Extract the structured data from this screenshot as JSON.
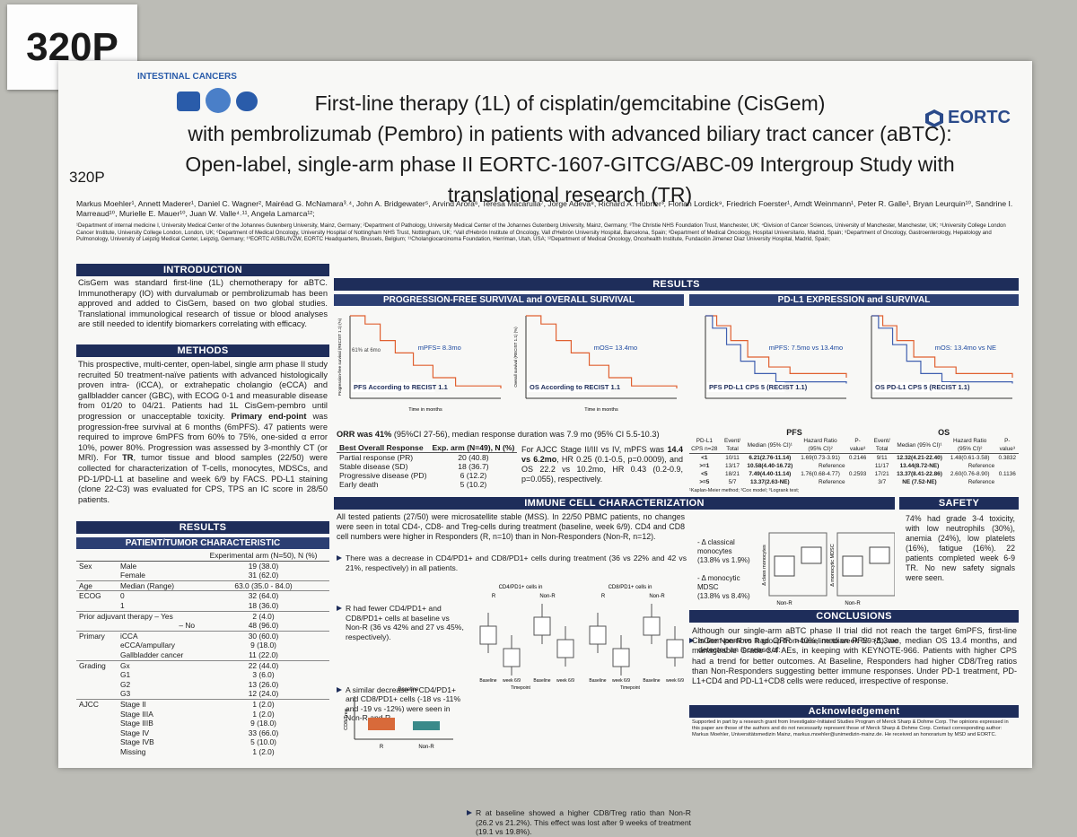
{
  "board_tag": "320P",
  "header": {
    "conference": "INTESTINAL CANCERS",
    "title_lines": [
      "First-line therapy (1L) of cisplatin/gemcitabine (CisGem)",
      "with pembrolizumab (Pembro) in patients with advanced biliary tract cancer (aBTC):",
      "Open-label, single-arm phase II EORTC-1607-GITCG/ABC-09 Intergroup Study with",
      "translational research (TR)"
    ],
    "poster_id": "320P",
    "logo": "EORTC",
    "authors": "Markus Moehler¹, Annett Maderer¹, Daniel C. Wagner², Mairéad G. McNamara³˒⁴, John A. Bridgewater⁵, Arvind Arora⁶, Teresa Macarulla⁷, Jorge Adeva⁸, Richard A. Hubner³, Florian Lordick⁹, Friedrich Foerster¹, Arndt Weinmann¹, Peter R. Galle¹, Bryan Leurquin¹⁰, Sandrine I. Marreaud¹⁰, Murielle E. Mauer¹⁰, Juan W. Valle⁴˒¹¹, Angela Lamarca¹²;",
    "affiliations": "¹Department of internal medicine I, University Medical Center of the Johannes Gutenberg University, Mainz, Germany; ²Department of Pathology, University Medical Center of the Johannes Gutenberg University, Mainz, Germany; ³The Christie NHS Foundation Trust, Manchester, UK; ⁴Division of Cancer Sciences, University of Manchester, Manchester, UK; ⁵University College London Cancer Institute, University College London, London, UK; ⁶Department of Medical Oncology, University Hospital of Nottingham NHS Trust, Nottingham, UK; ⁷Vall d'Hebrón Institute of Oncology, Vall d'Hebrón University Hospital, Barcelona, Spain; ⁸Department of Medical Oncology, Hospital Universitario, Madrid, Spain; ⁹Department of Oncology, Gastroenterology, Hepatology and Pulmonology, University of Leipzig Medical Center, Leipzig, Germany; ¹⁰EORTC AISBL/IVZW, EORTC Headquarters, Brussels, Belgium; ¹¹Cholangiocarcinoma Foundation, Herriman, Utah, USA; ¹²Department of Medical Oncology, Oncohealth Institute, Fundación Jimenez Diaz University Hospital, Madrid, Spain;"
  },
  "introduction": {
    "heading": "INTRODUCTION",
    "text": "CisGem was standard first-line (1L) chemotherapy for aBTC. Immunotherapy (IO) with durvalumab or pembrolizumab has been approved and added to CisGem, based on two global studies. Translational immunological research of tissue or blood analyses are still needed to identify biomarkers correlating with efficacy."
  },
  "methods": {
    "heading": "METHODS",
    "segments": [
      {
        "text": "This prospective, multi-center, open-label, single arm phase II study recruited 50 treatment-naïve patients with advanced histologically proven intra- (iCCA), or extrahepatic cholangio (eCCA) and gallbladder cancer (GBC), with ECOG 0-1 and measurable disease from 01/20 to 04/21. Patients had 1L CisGem-pembro until progression or unacceptable toxicity. "
      },
      {
        "text": "Primary end-point",
        "bold": true
      },
      {
        "text": " was progression-free survival at 6 months (6mPFS). 47 patients were required to improve 6mPFS from 60% to 75%, one-sided α error 10%, power 80%. Progression was assessed by 3-monthly CT (or MRI). For "
      },
      {
        "text": "TR",
        "bold": true
      },
      {
        "text": ", tumor tissue and blood samples (22/50) were collected for characterization of T-cells, monocytes, MDSCs, and PD-1/PD-L1 at baseline and week 6/9 by FACS. PD-L1 staining (clone 22-C3) was evaluated for CPS, TPS an IC score in 28/50 patients."
      }
    ]
  },
  "results_left": {
    "heading": "RESULTS",
    "subheading": "PATIENT/TUMOR CHARACTERISTIC",
    "column_header": "Experimental arm (N=50), N (%)",
    "rows": [
      {
        "group": "Sex",
        "item": "Male",
        "value": "19 (38.0)"
      },
      {
        "item": "Female",
        "value": "31 (62.0)"
      },
      {
        "group": "Age",
        "item": "Median (Range)",
        "value": "63.0 (35.0 - 84.0)"
      },
      {
        "group": "ECOG",
        "item": "0",
        "value": "32 (64.0)"
      },
      {
        "item": "1",
        "value": "18 (36.0)"
      },
      {
        "group": "Prior adjuvant therapy – Yes",
        "value": "2 (4.0)"
      },
      {
        "item": "– No",
        "value": "48 (96.0)"
      },
      {
        "group": "Primary",
        "item": "iCCA",
        "value": "30 (60.0)"
      },
      {
        "item": "eCCA/ampullary",
        "value": "9 (18.0)"
      },
      {
        "item": "Gallbladder cancer",
        "value": "11 (22.0)"
      },
      {
        "group": "Grading",
        "item": "Gx",
        "value": "22 (44.0)"
      },
      {
        "item": "G1",
        "value": "3 (6.0)"
      },
      {
        "item": "G2",
        "value": "13 (26.0)"
      },
      {
        "item": "G3",
        "value": "12 (24.0)"
      },
      {
        "group": "AJCC",
        "item": "Stage II",
        "value": "1 (2.0)"
      },
      {
        "item": "Stage IIIA",
        "value": "1 (2.0)"
      },
      {
        "item": "Stage IIIB",
        "value": "9 (18.0)"
      },
      {
        "item": "Stage IV",
        "value": "33 (66.0)"
      },
      {
        "item": "Stage IVB",
        "value": "5 (10.0)"
      },
      {
        "item": "Missing",
        "value": "1 (2.0)"
      }
    ]
  },
  "results": {
    "heading": "RESULTS",
    "survival": {
      "heading": "PROGRESSION-FREE SURVIVAL and OVERALL SURVIVAL",
      "pfs_plot": {
        "label": "PFS According to RECIST 1.1",
        "median": "mPFS= 8.3mo",
        "annotation": "61% at 6mo",
        "y_label": "Progression-free survival (RECIST 1.1) (%)",
        "x_label": "Time in months"
      },
      "os_plot": {
        "label": "OS According to RECIST 1.1",
        "median": "mOS= 13.4mo",
        "y_label": "Overall survival (RECIST 1.1) (%)",
        "x_label": "Time in months"
      },
      "orr": [
        {
          "text": "ORR was 41%",
          "bold": true
        },
        {
          "text": " (95%CI 27-56), median response duration was 7.9 mo (95% CI 5.5-10.3)"
        }
      ],
      "response_table": {
        "header": [
          "Best Overall Response",
          "Exp. arm (N=49), N (%)"
        ],
        "rows": [
          [
            "Partial response (PR)",
            "20 (40.8)"
          ],
          [
            "Stable disease (SD)",
            "18 (36.7)"
          ],
          [
            "Progressive disease (PD)",
            "6 (12.2)"
          ],
          [
            "Early death",
            "5 (10.2)"
          ]
        ]
      },
      "ajcc": [
        {
          "text": "For AJCC Stage II/III vs IV, mPFS was "
        },
        {
          "text": "14.4 vs 6.2mo",
          "bold": true
        },
        {
          "text": ", HR 0.25 (0.1-0.5, p=0.0009), and OS 22.2 vs 10.2mo, HR 0.43 (0.2-0.9, p=0.055), respectively."
        }
      ]
    },
    "pdl1": {
      "heading": "PD-L1 EXPRESSION and SURVIVAL",
      "pfs_plot": {
        "label": "PFS PD-L1 CPS 5 (RECIST 1.1)",
        "median": "mPFS:  7.5mo vs 13.4mo"
      },
      "os_plot": {
        "label": "OS PD-L1 CPS 5 (RECIST 1.1)",
        "median": "mOS:  13.4mo vs NE"
      },
      "table": {
        "groups": [
          "PFS",
          "OS"
        ],
        "header": [
          "PD-L1 CPS n=28",
          "Event/ Total",
          "Median (95% CI)¹",
          "Hazard Ratio (95% CI)²",
          "P-value³",
          "Event/ Total",
          "Median (95% CI)¹",
          "Hazard Ratio (95% CI)²",
          "P-value³"
        ],
        "rows": [
          {
            "cps": "<1",
            "pfs": [
              "10/11",
              "6.21(2.76-11.14)",
              "1.69(0.73-3.91)",
              "0.2146"
            ],
            "os": [
              "9/11",
              "12.32(4.21-22.40)",
              "1.48(0.61-3.58)",
              "0.3832"
            ]
          },
          {
            "cps": ">=1",
            "pfs": [
              "13/17",
              "10.58(4.40-16.72)",
              "Reference"
            ],
            "os": [
              "11/17",
              "13.44(8.72-NE)",
              "Reference"
            ]
          },
          {
            "cps": "<5",
            "pfs": [
              "18/21",
              "7.49(4.40-11.14)",
              "1.76(0.68-4.77)",
              "0.2593"
            ],
            "os": [
              "17/21",
              "13.37(8.41-22.86)",
              "2.60(0.76-8.90)",
              "0.1136"
            ]
          },
          {
            "cps": ">=5",
            "pfs": [
              "5/7",
              "13.37(2.63-NE)",
              "Reference"
            ],
            "os": [
              "3/7",
              "NE (7.52-NE)",
              "Reference"
            ]
          }
        ],
        "footnote": "¹Kaplan-Meier method; ²Cox model; ³Logrank test;"
      }
    },
    "immune": {
      "heading": "IMMUNE CELL CHARACTERIZATION",
      "intro": "All tested patients (27/50) were microsatellite stable (MSS). In 22/50 PBMC patients, no changes were seen in total CD4-, CD8- and Treg-cells during treatment (baseline, week 6/9). CD4 and CD8 cell numbers were higher in Responders (R, n=10) than in Non-Responders (Non-R, n=12).",
      "bullets": [
        "There was a decrease in CD4/PD1+ and CD8/PD1+ cells during treatment (36 vs 22% and 42 vs 21%, respectively) in all patients.",
        "R had fewer CD4/PD1+ and CD8/PD1+ cells at baseline vs Non-R (36 vs 42% and 27 vs 45%, respectively).",
        "A similar decrease in CD4/PD1+ and CD8/PD1+ cells (-18 vs -11% and -19 vs -12%) were seen in Non-R and R.",
        "R at baseline showed a higher CD8/Treg ratio than Non-R (26.2 vs 21.2%). This effect was lost after 9 weeks of treatment (19.1 vs 19.8%)."
      ],
      "plots": {
        "cd4_title": "CD4/PD1+ cells in",
        "cd8_title": "CD8/PD1+ cells in",
        "groups": [
          "R",
          "Non-R"
        ],
        "timepoints": [
          "Baseline",
          "week 6/9"
        ],
        "x_label": "Timepoint",
        "baseline_title": "Baseline",
        "ratio_label": "CD8/Treg"
      },
      "right_bullet": "In the Non-R vs R group from baseline to week 6/9 (Δ), we detected an increase of:",
      "right_items": [
        {
          "name": "- Δ classical monocytes",
          "detail": "(13.8% vs 1.9%)"
        },
        {
          "name": "- Δ monocytic MDSC",
          "detail": "(13.8% vs 8.4%)"
        }
      ],
      "box_labels": {
        "y1": "Δ class monocytes",
        "y2": "Δ monocytic MDSC",
        "x": "Non-R"
      }
    },
    "safety": {
      "heading": "SAFETY",
      "text": "74% had grade 3-4 toxicity, with low neutrophils (30%), anemia (24%), low platelets (16%), fatigue (16%). 22 patients completed week 6-9 TR. No new safety signals were seen."
    },
    "conclusions": {
      "heading": "CONCLUSIONS",
      "text": "Although our single-arm aBTC phase II trial did not reach the target 6mPFS, first-line CisGem-pembro had ORR >40%, median PFS >8.3mo, median OS 13.4 months, and manageable Grade 3/4 AEs, in keeping with KEYNOTE-966. Patients with higher CPS had a trend for better outcomes. At Baseline, Responders had higher CD8/Treg ratios than Non-Responders suggesting better immune responses. Under PD-1 treatment, PD-L1+CD4 and PD-L1+CD8 cells were reduced, irrespective of response."
    },
    "acknowledgement": {
      "heading": "Acknowledgement",
      "text": "Supported in part by a research grant from Investigator-Initiated Studies Program of Merck Sharp & Dohme Corp. The opinions expressed in this paper are those of the authors and do not necessarily represent those of Merck Sharp & Dohme Corp. Contact corresponding author: Markus Moehler, Universitätsmedizin Mainz, markus.moehler@unimedizin-mainz.de. He received an honorarium by MSD and EORTC."
    }
  }
}
